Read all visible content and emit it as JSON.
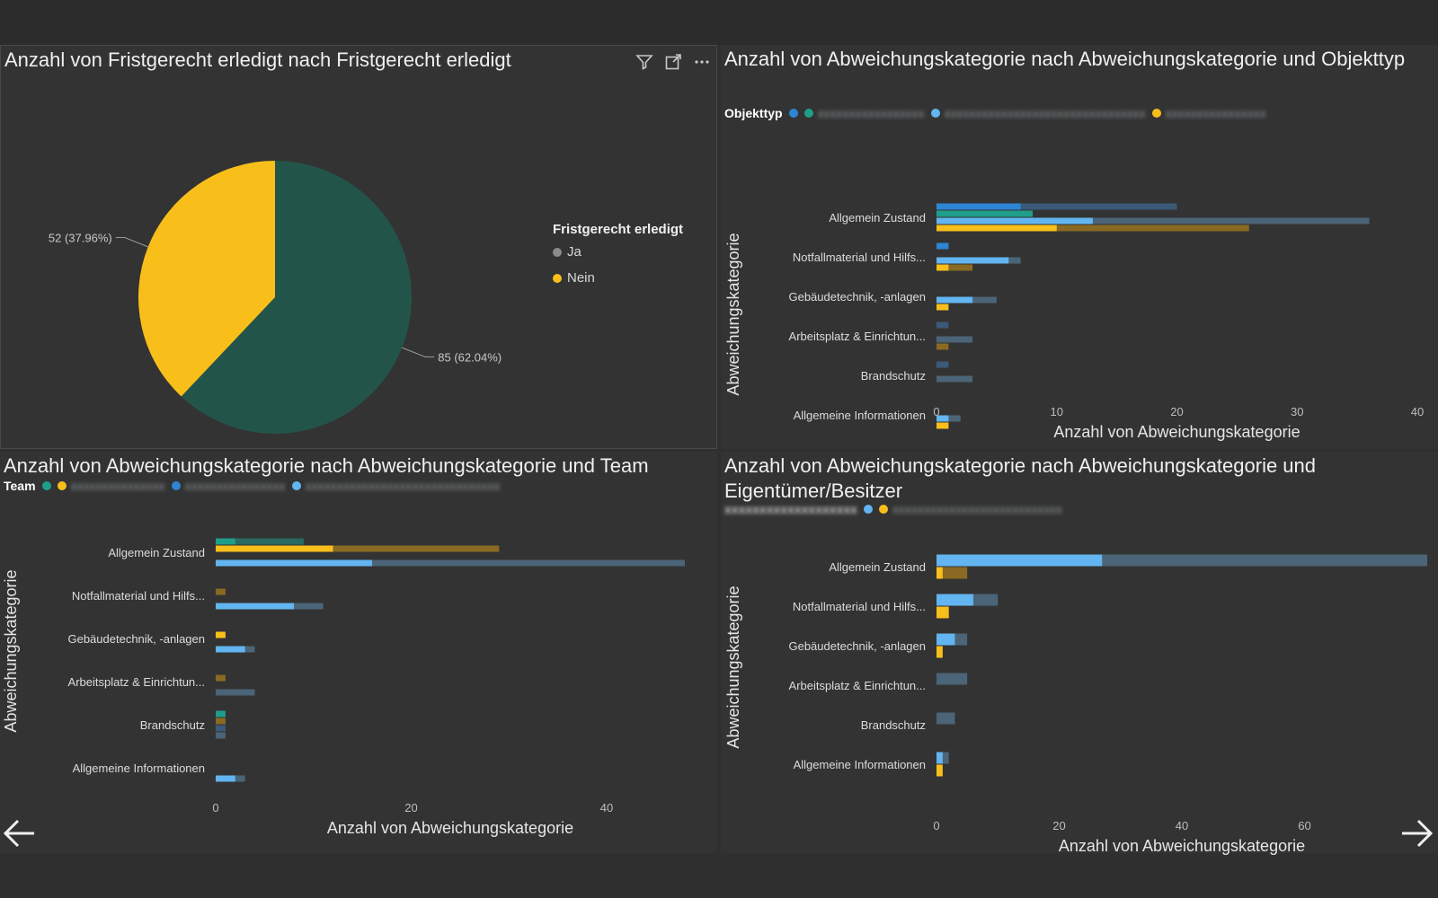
{
  "colors": {
    "background": "#2f2f2f",
    "teal": "#1f9e89",
    "darkgreen": "#23544a",
    "yellow": "#f8bf1b",
    "blue": "#2c86d4",
    "lightblue": "#62b5f0",
    "grey_track": "#4b6477",
    "gold_track": "#8a6a22"
  },
  "nav": {
    "prev_icon": "arrow-left-icon",
    "next_icon": "arrow-right-icon"
  },
  "panel1": {
    "title": "Anzahl von Fristgerecht erledigt nach Fristgerecht erledigt",
    "icons": [
      "filter-icon",
      "focus-mode-icon",
      "more-options-icon"
    ],
    "legend_title": "Fristgerecht erledigt",
    "chart_data": {
      "type": "pie",
      "title": "Anzahl von Fristgerecht erledigt nach Fristgerecht erledigt",
      "legend_title": "Fristgerecht erledigt",
      "legend_position": "right",
      "slices": [
        {
          "label": "Ja",
          "value": 85,
          "percent": 62.04,
          "data_label": "85 (62.04%)",
          "color": "#23544a"
        },
        {
          "label": "Nein",
          "value": 52,
          "percent": 37.96,
          "data_label": "52 (37.96%)",
          "color": "#f8bf1b"
        }
      ]
    }
  },
  "panel2": {
    "chart_data": {
      "type": "bar",
      "orientation": "horizontal",
      "title": "Anzahl von Abweichungskategorie nach Abweichungskategorie und Objekttyp",
      "legend_title": "Objekttyp",
      "legend_position": "top-left",
      "xlabel": "Anzahl von Abweichungskategorie",
      "ylabel": "Abweichungskategorie",
      "xlim": [
        0,
        40
      ],
      "xticks": [
        0,
        10,
        20,
        30,
        40
      ],
      "categories": [
        "Allgemein Zustand",
        "Notfallmaterial und Hilfs...",
        "Gebäudetechnik, -anlagen",
        "Arbeitsplatz & Einrichtun...",
        "Brandschutz",
        "Allgemeine Informationen"
      ],
      "series": [
        {
          "color": "#2c86d4",
          "track": "#3b5a78",
          "values": [
            7,
            1,
            0,
            0,
            0,
            0
          ],
          "totals": [
            20,
            1,
            0,
            1,
            1,
            0
          ]
        },
        {
          "color": "#1f9e89",
          "track": "#2a6a62",
          "values": [
            8,
            0,
            0,
            0,
            0,
            0
          ],
          "totals": [
            8,
            0,
            0,
            0,
            0,
            0
          ]
        },
        {
          "color": "#62b5f0",
          "track": "#4b6477",
          "values": [
            13,
            6,
            3,
            0,
            0,
            1
          ],
          "totals": [
            36,
            7,
            5,
            3,
            3,
            2
          ]
        },
        {
          "color": "#f8bf1b",
          "track": "#8a6a22",
          "values": [
            10,
            1,
            1,
            0,
            0,
            1
          ],
          "totals": [
            26,
            3,
            1,
            1,
            0,
            1
          ]
        }
      ]
    }
  },
  "panel3": {
    "chart_data": {
      "type": "bar",
      "orientation": "horizontal",
      "title": "Anzahl von Abweichungskategorie nach Abweichungskategorie und Team",
      "legend_title": "Team",
      "legend_position": "top-left",
      "xlabel": "Anzahl von Abweichungskategorie",
      "ylabel": "Abweichungskategorie",
      "xlim": [
        0,
        48
      ],
      "xticks": [
        0,
        20,
        40
      ],
      "categories": [
        "Allgemein Zustand",
        "Notfallmaterial und Hilfs...",
        "Gebäudetechnik, -anlagen",
        "Arbeitsplatz & Einrichtun...",
        "Brandschutz",
        "Allgemeine Informationen"
      ],
      "series": [
        {
          "color": "#1f9e89",
          "track": "#2a6a62",
          "values": [
            2,
            0,
            0,
            0,
            1,
            0
          ],
          "totals": [
            9,
            0,
            0,
            0,
            1,
            0
          ]
        },
        {
          "color": "#f8bf1b",
          "track": "#8a6a22",
          "values": [
            12,
            0,
            1,
            0,
            0,
            0
          ],
          "totals": [
            29,
            1,
            1,
            1,
            1,
            0
          ]
        },
        {
          "color": "#2c86d4",
          "track": "#3b5a78",
          "values": [
            0,
            0,
            0,
            0,
            0,
            0
          ],
          "totals": [
            0,
            0,
            0,
            0,
            1,
            0
          ]
        },
        {
          "color": "#62b5f0",
          "track": "#4b6477",
          "values": [
            16,
            8,
            3,
            0,
            0,
            2
          ],
          "totals": [
            48,
            11,
            4,
            4,
            1,
            3
          ]
        }
      ]
    }
  },
  "panel4": {
    "chart_data": {
      "type": "bar",
      "orientation": "horizontal",
      "title": "Anzahl von Abweichungskategorie nach Abweichungskategorie und Eigentümer/Besitzer",
      "legend_title": "Eigentümer/Besitzer",
      "legend_position": "top-left",
      "xlabel": "Anzahl von Abweichungskategorie",
      "ylabel": "Abweichungskategorie",
      "xlim": [
        0,
        80
      ],
      "xticks": [
        0,
        20,
        40,
        60
      ],
      "categories": [
        "Allgemein Zustand",
        "Notfallmaterial und Hilfs...",
        "Gebäudetechnik, -anlagen",
        "Arbeitsplatz & Einrichtun...",
        "Brandschutz",
        "Allgemeine Informationen"
      ],
      "series": [
        {
          "color": "#62b5f0",
          "track": "#4b6477",
          "values": [
            27,
            6,
            3,
            0,
            0,
            1
          ],
          "totals": [
            80,
            10,
            5,
            5,
            3,
            2
          ]
        },
        {
          "color": "#f8bf1b",
          "track": "#8a6a22",
          "values": [
            1,
            2,
            1,
            0,
            0,
            1
          ],
          "totals": [
            5,
            2,
            1,
            0,
            0,
            1
          ]
        }
      ]
    }
  }
}
